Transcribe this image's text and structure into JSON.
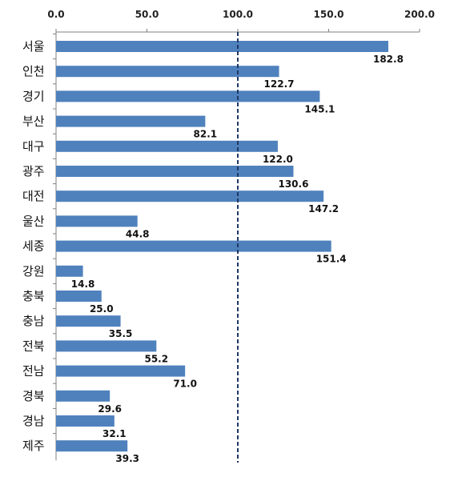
{
  "chart_data": {
    "type": "bar",
    "orientation": "horizontal",
    "categories": [
      "서울",
      "인천",
      "경기",
      "부산",
      "대구",
      "광주",
      "대전",
      "울산",
      "세종",
      "강원",
      "충북",
      "충남",
      "전북",
      "전남",
      "경북",
      "경남",
      "제주"
    ],
    "values": [
      182.8,
      122.7,
      145.1,
      82.1,
      122.0,
      130.6,
      147.2,
      44.8,
      151.4,
      14.8,
      25.0,
      35.5,
      55.2,
      71.0,
      29.6,
      32.1,
      39.3
    ],
    "value_labels": [
      "182.8",
      "122.7",
      "145.1",
      "82.1",
      "122.0",
      "130.6",
      "147.2",
      "44.8",
      "151.4",
      "14.8",
      "25.0",
      "35.5",
      "55.2",
      "71.0",
      "29.6",
      "32.1",
      "39.3"
    ],
    "xlim": [
      0,
      200
    ],
    "x_ticks": [
      0,
      50,
      100,
      150,
      200
    ],
    "x_tick_labels": [
      "0.0",
      "50.0",
      "100.0",
      "150.0",
      "200.0"
    ],
    "x_axis_position": "top",
    "reference_line": {
      "value": 100,
      "style": "dashed"
    },
    "grid": false,
    "bar_color": "#4f81bd",
    "reference_line_color": "#1f3864"
  }
}
